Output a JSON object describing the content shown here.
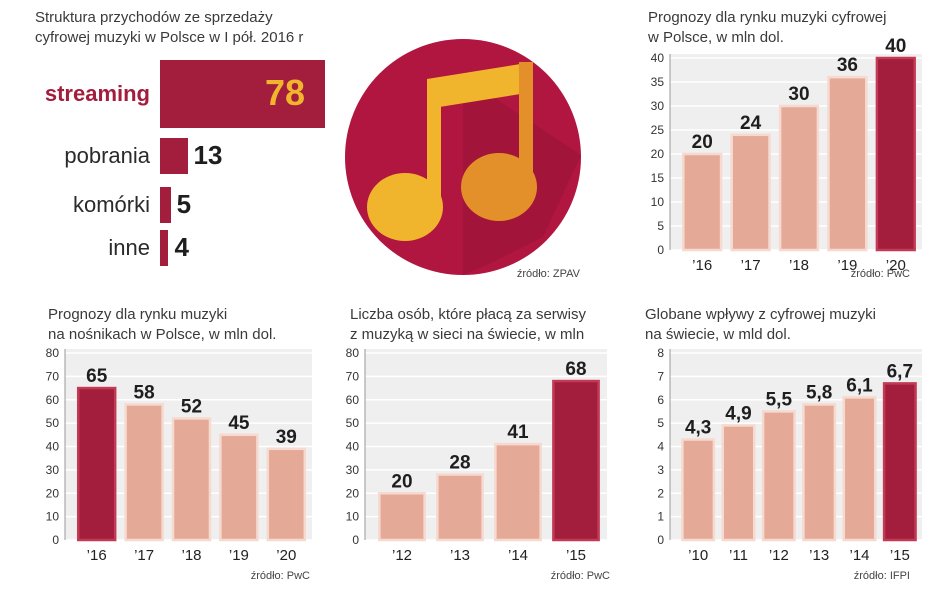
{
  "colors": {
    "accent": "#a31d3c",
    "bar_light": "#e5a997",
    "bar_light_stroke": "#f6d9cf",
    "panel_bg": "#efefef",
    "grid": "#ffffff",
    "note_yellow": "#f1b52d",
    "note_orange": "#e3902a",
    "circle": "#b0163f",
    "circle_shadow": "#8c1231"
  },
  "icon": {
    "name": "music-note-icon"
  },
  "panel_streaming": {
    "title": "Struktura przychodów ze sprzedaży\ncyfrowej muzyki w Polsce w I pół. 2016 r",
    "source": "źródło: ZPAV"
  },
  "panel_digital_pl": {
    "title": "Prognozy dla rynku muzyki cyfrowej\nw Polsce, w mln dol.",
    "source": "źródło: PwC"
  },
  "panel_physical_pl": {
    "title": "Prognozy dla rynku muzyki\nna nośnikach  w Polsce, w mln dol.",
    "source": "źródło: PwC"
  },
  "panel_subscribers": {
    "title": "Liczba osób, które płacą za serwisy\nz muzyką w sieci na świecie, w mln",
    "source": "źródło: PwC"
  },
  "panel_global_revenue": {
    "title": "Globane wpływy z cyfrowej muzyki\nna świecie, w mld dol.",
    "source": "źródło: IFPI"
  },
  "chart_data": [
    {
      "type": "bar",
      "orientation": "horizontal",
      "title": "Struktura przychodów ze sprzedaży cyfrowej muzyki w Polsce w I pół. 2016 r",
      "categories": [
        "streaming",
        "pobrania",
        "komórki",
        "inne"
      ],
      "values": [
        78,
        13,
        5,
        4
      ],
      "value_labels": [
        "78",
        "13",
        "5",
        "4"
      ],
      "highlight": "streaming"
    },
    {
      "type": "bar",
      "title": "Prognozy dla rynku muzyki cyfrowej w Polsce, w mln dol.",
      "categories": [
        "’16",
        "’17",
        "’18",
        "’19",
        "’20"
      ],
      "values": [
        20,
        24,
        30,
        36,
        40
      ],
      "value_labels": [
        "20",
        "24",
        "30",
        "36",
        "40"
      ],
      "ylim": [
        0,
        40
      ],
      "yticks": [
        "0",
        "5",
        "10",
        "15",
        "20",
        "25",
        "30",
        "35",
        "40"
      ],
      "ytick_values": [
        0,
        5,
        10,
        15,
        20,
        25,
        30,
        35,
        40
      ],
      "highlight_index": 4,
      "grid": true
    },
    {
      "type": "bar",
      "title": "Prognozy dla rynku muzyki na nośnikach w Polsce, w mln dol.",
      "categories": [
        "’16",
        "’17",
        "’18",
        "’19",
        "’20"
      ],
      "values": [
        65,
        58,
        52,
        45,
        39
      ],
      "value_labels": [
        "65",
        "58",
        "52",
        "45",
        "39"
      ],
      "ylim": [
        0,
        80
      ],
      "yticks": [
        "0",
        "10",
        "20",
        "30",
        "40",
        "50",
        "60",
        "70",
        "80"
      ],
      "ytick_values": [
        0,
        10,
        20,
        30,
        40,
        50,
        60,
        70,
        80
      ],
      "highlight_index": 0,
      "grid": true
    },
    {
      "type": "bar",
      "title": "Liczba osób, które płacą za serwisy z muzyką w sieci na świecie, w mln",
      "categories": [
        "’12",
        "’13",
        "’14",
        "’15"
      ],
      "values": [
        20,
        28,
        41,
        68
      ],
      "value_labels": [
        "20",
        "28",
        "41",
        "68"
      ],
      "ylim": [
        0,
        80
      ],
      "yticks": [
        "0",
        "10",
        "20",
        "30",
        "40",
        "50",
        "60",
        "70",
        "80"
      ],
      "ytick_values": [
        0,
        10,
        20,
        30,
        40,
        50,
        60,
        70,
        80
      ],
      "highlight_index": 3,
      "grid": true
    },
    {
      "type": "bar",
      "title": "Globane wpływy z cyfrowej muzyki na świecie, w mld dol.",
      "categories": [
        "’10",
        "’11",
        "’12",
        "’13",
        "’14",
        "’15"
      ],
      "values": [
        4.3,
        4.9,
        5.5,
        5.8,
        6.1,
        6.7
      ],
      "value_labels": [
        "4,3",
        "4,9",
        "5,5",
        "5,8",
        "6,1",
        "6,7"
      ],
      "ylim": [
        0,
        8
      ],
      "yticks": [
        "0",
        "1",
        "2",
        "3",
        "4",
        "5",
        "6",
        "7",
        "8"
      ],
      "ytick_values": [
        0,
        1,
        2,
        3,
        4,
        5,
        6,
        7,
        8
      ],
      "highlight_index": 5,
      "grid": true
    }
  ]
}
